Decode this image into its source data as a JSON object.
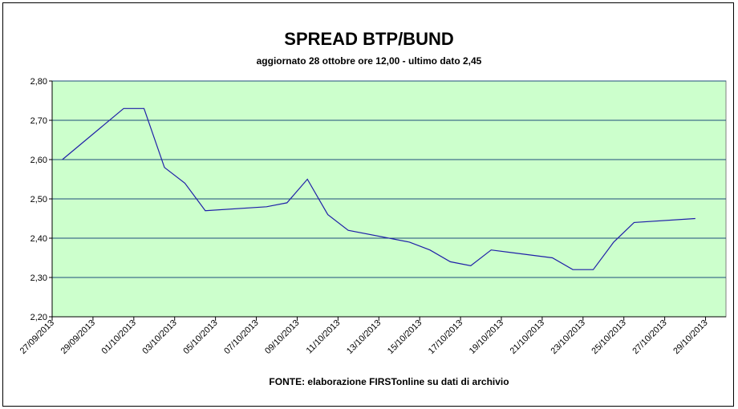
{
  "chart_data": {
    "type": "line",
    "title": "SPREAD BTP/BUND",
    "subtitle": "aggiornato 28 ottobre ore 12,00 - ultimo dato 2,45",
    "source": "FONTE: elaborazione FIRSTonline su dati di archivio",
    "x": [
      "27/09/2013",
      "30/09/2013",
      "01/10/2013",
      "02/10/2013",
      "03/10/2013",
      "04/10/2013",
      "07/10/2013",
      "08/10/2013",
      "09/10/2013",
      "10/10/2013",
      "11/10/2013",
      "14/10/2013",
      "15/10/2013",
      "16/10/2013",
      "17/10/2013",
      "18/10/2013",
      "21/10/2013",
      "22/10/2013",
      "23/10/2013",
      "24/10/2013",
      "25/10/2013",
      "28/10/2013"
    ],
    "series": [
      {
        "name": "Spread BTP/Bund",
        "color": "#1f1fa8",
        "values": [
          2.6,
          2.73,
          2.73,
          2.58,
          2.54,
          2.47,
          2.48,
          2.49,
          2.55,
          2.46,
          2.42,
          2.39,
          2.37,
          2.34,
          2.33,
          2.37,
          2.35,
          2.32,
          2.32,
          2.39,
          2.44,
          2.45
        ]
      }
    ],
    "xlim": [
      "27/09/2013",
      "30/10/2013"
    ],
    "xticks": [
      "27/09/2013",
      "29/09/2013",
      "01/10/2013",
      "03/10/2013",
      "05/10/2013",
      "07/10/2013",
      "09/10/2013",
      "11/10/2013",
      "13/10/2013",
      "15/10/2013",
      "17/10/2013",
      "19/10/2013",
      "21/10/2013",
      "23/10/2013",
      "25/10/2013",
      "27/10/2013",
      "29/10/2013"
    ],
    "ylim": [
      2.2,
      2.8
    ],
    "yticks": [
      {
        "value": 2.2,
        "label": "2,20"
      },
      {
        "value": 2.3,
        "label": "2,30"
      },
      {
        "value": 2.4,
        "label": "2,40"
      },
      {
        "value": 2.5,
        "label": "2,50"
      },
      {
        "value": 2.6,
        "label": "2,60"
      },
      {
        "value": 2.7,
        "label": "2,70"
      },
      {
        "value": 2.8,
        "label": "2,80"
      }
    ],
    "grid": true,
    "plot_color": "#ccffcc",
    "grid_color": "#1e4d7a"
  }
}
